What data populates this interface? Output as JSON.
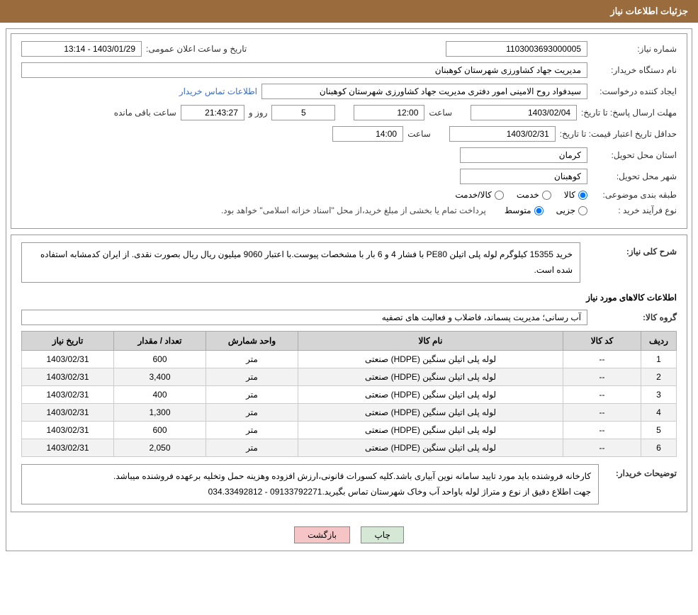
{
  "header": {
    "title": "جزئیات اطلاعات نیاز"
  },
  "fields": {
    "need_no_label": "شماره نیاز:",
    "need_no": "1103003693000005",
    "announce_label": "تاریخ و ساعت اعلان عمومی:",
    "announce_value": "1403/01/29 - 13:14",
    "buyer_org_label": "نام دستگاه خریدار:",
    "buyer_org": "مدیریت جهاد کشاورزی شهرستان کوهبنان",
    "requester_label": "ایجاد کننده درخواست:",
    "requester": "سیدفواد روح الامینی امور دفتری مدیریت جهاد کشاورزی شهرستان کوهبنان",
    "contact_link": "اطلاعات تماس خریدار",
    "deadline_label": "مهلت ارسال پاسخ: تا تاریخ:",
    "deadline_date": "1403/02/04",
    "time_label": "ساعت",
    "deadline_time": "12:00",
    "days_label": "روز و",
    "days": "5",
    "countdown": "21:43:27",
    "remain_label": "ساعت باقی مانده",
    "validity_label": "حداقل تاریخ اعتبار قیمت: تا تاریخ:",
    "validity_date": "1403/02/31",
    "validity_time": "14:00",
    "province_label": "استان محل تحویل:",
    "province": "کرمان",
    "city_label": "شهر محل تحویل:",
    "city": "کوهبنان",
    "category_label": "طبقه بندی موضوعی:",
    "cat_goods": "کالا",
    "cat_service": "خدمت",
    "cat_both": "کالا/خدمت",
    "purchase_type_label": "نوع فرآیند خرید :",
    "pt_partial": "جزیی",
    "pt_medium": "متوسط",
    "purchase_note": "پرداخت تمام یا بخشی از مبلغ خرید،از محل \"اسناد خزانه اسلامی\" خواهد بود."
  },
  "need": {
    "desc_label": "شرح کلی نیاز:",
    "desc": "خرید 15355 کیلوگرم لوله پلی اتیلن PE80 با فشار 4 و 6 بار با مشخصات پیوست.با اعتبار 9060 میلیون ریال ریال بصورت نقدی. از ایران کدمشابه استفاده شده است.",
    "items_title": "اطلاعات کالاهای مورد نیاز",
    "group_label": "گروه کالا:",
    "group": "آب رسانی؛ مدیریت پسماند، فاضلاب و فعالیت های تصفیه"
  },
  "table": {
    "headers": {
      "row": "ردیف",
      "code": "کد کالا",
      "name": "نام کالا",
      "unit": "واحد شمارش",
      "qty": "تعداد / مقدار",
      "date": "تاریخ نیاز"
    },
    "rows": [
      {
        "n": "1",
        "code": "--",
        "name": "لوله پلی اتیلن سنگین (HDPE) صنعتی",
        "unit": "متر",
        "qty": "600",
        "date": "1403/02/31"
      },
      {
        "n": "2",
        "code": "--",
        "name": "لوله پلی اتیلن سنگین (HDPE) صنعتی",
        "unit": "متر",
        "qty": "3,400",
        "date": "1403/02/31"
      },
      {
        "n": "3",
        "code": "--",
        "name": "لوله پلی اتیلن سنگین (HDPE) صنعتی",
        "unit": "متر",
        "qty": "400",
        "date": "1403/02/31"
      },
      {
        "n": "4",
        "code": "--",
        "name": "لوله پلی اتیلن سنگین (HDPE) صنعتی",
        "unit": "متر",
        "qty": "1,300",
        "date": "1403/02/31"
      },
      {
        "n": "5",
        "code": "--",
        "name": "لوله پلی اتیلن سنگین (HDPE) صنعتی",
        "unit": "متر",
        "qty": "600",
        "date": "1403/02/31"
      },
      {
        "n": "6",
        "code": "--",
        "name": "لوله پلی اتیلن سنگین (HDPE) صنعتی",
        "unit": "متر",
        "qty": "2,050",
        "date": "1403/02/31"
      }
    ]
  },
  "comments": {
    "label": "توضیحات خریدار:",
    "text": "کارخانه فروشنده باید مورد تایید سامانه نوین آبیاری باشد.کلیه کسورات قانونی،ارزش افزوده وهزینه حمل وتخلیه برعهده فروشنده میباشد.\nجهت اطلاع دقیق از نوع و متراژ لوله باواحد آب وخاک شهرستان تماس بگیرید.09133792271 - 034.33492812"
  },
  "buttons": {
    "print": "چاپ",
    "back": "بازگشت"
  }
}
